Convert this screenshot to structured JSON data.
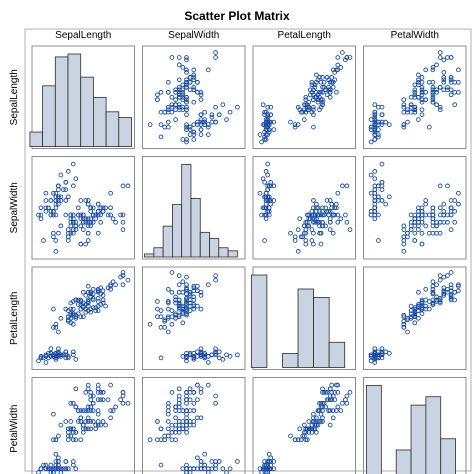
{
  "chart_data": {
    "type": "scatter_matrix",
    "title": "Scatter Plot Matrix",
    "variables": [
      "SepalLength",
      "SepalWidth",
      "PetalLength",
      "PetalWidth"
    ],
    "ranges": {
      "SepalLength": [
        4.2,
        8.0
      ],
      "SepalWidth": [
        1.9,
        4.5
      ],
      "PetalLength": [
        0.8,
        7.0
      ],
      "PetalWidth": [
        0.0,
        2.6
      ]
    },
    "histograms": {
      "SepalLength": {
        "bins": [
          4.25,
          4.75,
          5.25,
          5.75,
          6.25,
          6.75,
          7.25,
          7.75
        ],
        "percent": [
          5,
          21,
          31,
          32,
          24,
          17,
          12,
          10
        ]
      },
      "SepalWidth": {
        "bins": [
          2.0,
          2.25,
          2.5,
          2.75,
          3.0,
          3.25,
          3.5,
          3.75,
          4.0,
          4.25
        ],
        "percent": [
          1,
          3,
          10,
          17,
          30,
          19,
          8,
          6,
          3,
          2
        ]
      },
      "PetalLength": {
        "bins": [
          1.0,
          2.0,
          3.0,
          4.0,
          5.0,
          6.0
        ],
        "percent": [
          33,
          0,
          5,
          28,
          25,
          9
        ]
      },
      "PetalWidth": {
        "bins": [
          0.2,
          0.6,
          1.0,
          1.4,
          1.8,
          2.2
        ],
        "percent": [
          33,
          0,
          10,
          26,
          29,
          14
        ]
      }
    }
  }
}
